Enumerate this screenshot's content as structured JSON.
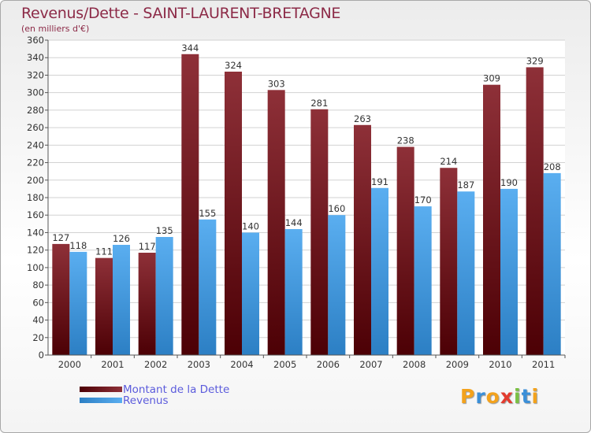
{
  "chart_title": "Revenus/Dette - SAINT-LAURENT-BRETAGNE",
  "chart_subtitle": "(en milliers d'€)",
  "colors": {
    "debt_top": "#8e3038",
    "debt_bottom": "#4c0005",
    "revenue_top": "#5aaef0",
    "revenue_bottom": "#2c7fc4",
    "title": "#8c2a47",
    "legend_text": "#5b5bdc"
  },
  "legend": {
    "debt_label": "Montant de la Dette",
    "revenue_label": "Revenus"
  },
  "logo": {
    "letters": [
      "P",
      "r",
      "o",
      "x",
      "i",
      "t",
      "i"
    ],
    "colors": [
      "#f3a21c",
      "#3b8fd8",
      "#f3a21c",
      "#e33b2e",
      "#7ac043",
      "#3b8fd8",
      "#f3a21c"
    ]
  },
  "chart_data": {
    "type": "bar",
    "title": "Revenus/Dette - SAINT-LAURENT-BRETAGNE",
    "subtitle": "(en milliers d'€)",
    "categories": [
      "2000",
      "2001",
      "2002",
      "2003",
      "2004",
      "2005",
      "2006",
      "2007",
      "2008",
      "2009",
      "2010",
      "2011"
    ],
    "series": [
      {
        "name": "Montant de la Dette",
        "values": [
          127,
          111,
          117,
          344,
          324,
          303,
          281,
          263,
          238,
          214,
          309,
          329
        ]
      },
      {
        "name": "Revenus",
        "values": [
          118,
          126,
          135,
          155,
          140,
          144,
          160,
          191,
          170,
          187,
          190,
          208
        ]
      }
    ],
    "ylim": [
      0,
      360
    ],
    "ytick_step": 20,
    "grid": true,
    "legend_position": "bottom-left",
    "xlabel": "",
    "ylabel": ""
  }
}
